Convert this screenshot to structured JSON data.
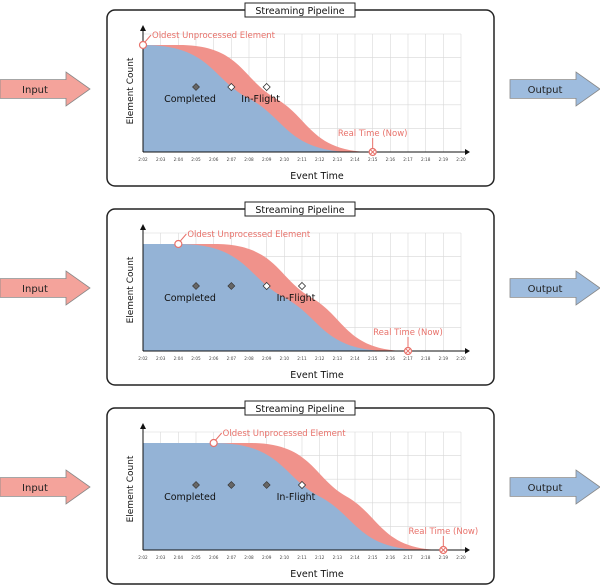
{
  "colors": {
    "completed": "#94b3d6",
    "inflight": "#f0928b",
    "input_arrow": "#f4a39b",
    "output_arrow": "#9ebcde",
    "annotation": "#e8726b",
    "marker": "#666666",
    "grid": "#d8d8d8"
  },
  "labels": {
    "input": "Input",
    "output": "Output",
    "title": "Streaming Pipeline",
    "ylabel": "Element Count",
    "xlabel": "Event Time",
    "completed": "Completed",
    "inflight": "In-Flight",
    "oldest": "Oldest Unprocessed Element",
    "now": "Real Time (Now)"
  },
  "ticks": [
    "2:02",
    "2:03",
    "2:04",
    "2:05",
    "2:06",
    "2:07",
    "2:08",
    "2:09",
    "2:10",
    "2:11",
    "2:12",
    "2:13",
    "2:14",
    "2:15",
    "2:16",
    "2:17",
    "2:18",
    "2:19",
    "2:20"
  ],
  "panels": [
    {
      "oldest_time": "2:02",
      "now_time": "2:15",
      "completed_markers": [
        "2:05"
      ],
      "inflight_markers": [
        "2:07",
        "2:09"
      ]
    },
    {
      "oldest_time": "2:04",
      "now_time": "2:17",
      "completed_markers": [
        "2:05",
        "2:07"
      ],
      "inflight_markers": [
        "2:09",
        "2:11"
      ]
    },
    {
      "oldest_time": "2:06",
      "now_time": "2:19",
      "completed_markers": [
        "2:05",
        "2:07",
        "2:09"
      ],
      "inflight_markers": [
        "2:11"
      ]
    }
  ]
}
